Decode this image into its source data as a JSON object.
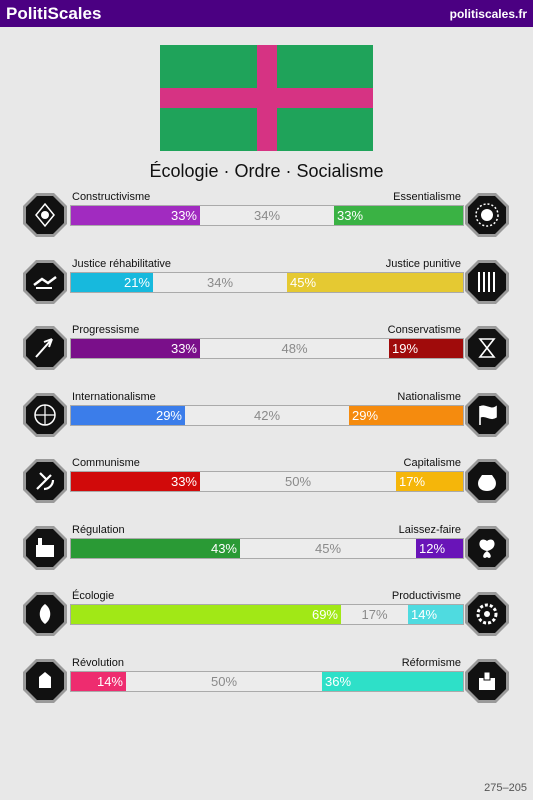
{
  "header": {
    "brand": "PolitiScales",
    "site": "politiscales.fr"
  },
  "slogan": "Écologie · Ordre · Socialisme",
  "footer": "275–205",
  "flag": {
    "background": "#1fa35a",
    "cross": "#d63383"
  },
  "axes": [
    {
      "left_label": "Constructivisme",
      "right_label": "Essentialisme",
      "left_pct": 33,
      "mid_pct": 34,
      "right_pct": 33,
      "left_text": "33%",
      "mid_text": "34%",
      "right_text": "33%",
      "left_color": "#a12bc0",
      "right_color": "#3ab244",
      "left_icon": "crystal-icon",
      "right_icon": "sunflower-icon"
    },
    {
      "left_label": "Justice réhabilitative",
      "right_label": "Justice punitive",
      "left_pct": 21,
      "mid_pct": 34,
      "right_pct": 45,
      "left_text": "21%",
      "mid_text": "34%",
      "right_text": "45%",
      "left_color": "#17b9dd",
      "right_color": "#e5c932",
      "left_icon": "handshake-icon",
      "right_icon": "prison-bars-icon"
    },
    {
      "left_label": "Progressisme",
      "right_label": "Conservatisme",
      "left_pct": 33,
      "mid_pct": 48,
      "right_pct": 19,
      "left_text": "33%",
      "mid_text": "48%",
      "right_text": "19%",
      "left_color": "#7a0f8a",
      "right_color": "#a00b0b",
      "left_icon": "rocket-icon",
      "right_icon": "hourglass-icon"
    },
    {
      "left_label": "Internationalisme",
      "right_label": "Nationalisme",
      "left_pct": 29,
      "mid_pct": 42,
      "right_pct": 29,
      "left_text": "29%",
      "mid_text": "42%",
      "right_text": "29%",
      "left_color": "#3b7dea",
      "right_color": "#f58b0e",
      "left_icon": "globe-icon",
      "right_icon": "flag-icon"
    },
    {
      "left_label": "Communisme",
      "right_label": "Capitalisme",
      "left_pct": 33,
      "mid_pct": 50,
      "right_pct": 17,
      "left_text": "33%",
      "mid_text": "50%",
      "right_text": "17%",
      "left_color": "#d10a0a",
      "right_color": "#f5b60a",
      "left_icon": "hammer-sickle-icon",
      "right_icon": "money-bag-icon"
    },
    {
      "left_label": "Régulation",
      "right_label": "Laissez-faire",
      "left_pct": 43,
      "mid_pct": 45,
      "right_pct": 12,
      "left_text": "43%",
      "mid_text": "45%",
      "right_text": "12%",
      "left_color": "#2a9a35",
      "right_color": "#6914b8",
      "left_icon": "factory-icon",
      "right_icon": "butterfly-icon"
    },
    {
      "left_label": "Écologie",
      "right_label": "Productivisme",
      "left_pct": 69,
      "mid_pct": 17,
      "right_pct": 14,
      "left_text": "69%",
      "mid_text": "17%",
      "right_text": "14%",
      "left_color": "#a1e816",
      "right_color": "#4fdbe0",
      "left_icon": "leaf-icon",
      "right_icon": "gear-icon"
    },
    {
      "left_label": "Révolution",
      "right_label": "Réformisme",
      "left_pct": 14,
      "mid_pct": 50,
      "right_pct": 36,
      "left_text": "14%",
      "mid_text": "50%",
      "right_text": "36%",
      "left_color": "#ee2c6f",
      "right_color": "#2ee0c8",
      "left_icon": "fist-icon",
      "right_icon": "ballot-box-icon"
    }
  ]
}
